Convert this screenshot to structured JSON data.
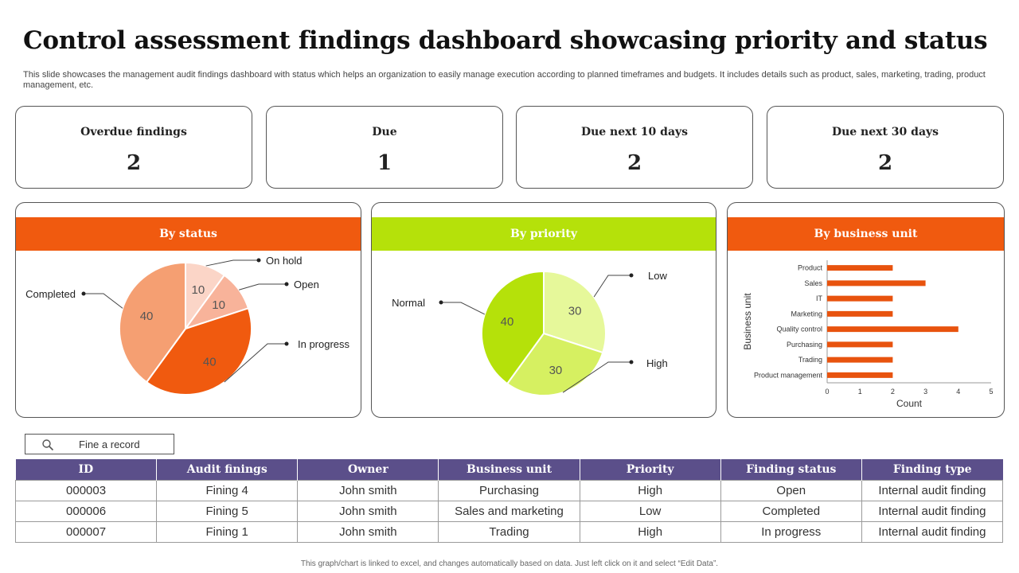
{
  "title": "Control assessment findings dashboard showcasing priority and status",
  "subtitle": "This slide showcases the management audit findings dashboard with status which helps an organization to easily manage execution according to planned timeframes and budgets. It includes details such as product, sales, marketing, trading, product management, etc.",
  "kpis": [
    {
      "label": "Overdue findings",
      "value": "2"
    },
    {
      "label": "Due",
      "value": "1"
    },
    {
      "label": "Due next 10 days",
      "value": "2"
    },
    {
      "label": "Due next 30 days",
      "value": "2"
    }
  ],
  "panels": {
    "status": {
      "title": "By status",
      "color": "#f05a0f"
    },
    "priority": {
      "title": "By priority",
      "color": "#b5e10a"
    },
    "business": {
      "title": "By business unit",
      "color": "#f05a0f"
    }
  },
  "chart_data": [
    {
      "type": "pie",
      "title": "By status",
      "labels": [
        "On hold",
        "Open",
        "In progress",
        "Completed"
      ],
      "values": [
        10,
        10,
        40,
        40
      ],
      "colors": [
        "#fbd5c7",
        "#f8b39a",
        "#f05a0f",
        "#f59f72"
      ]
    },
    {
      "type": "pie",
      "title": "By priority",
      "labels": [
        "Low",
        "High",
        "Normal"
      ],
      "values": [
        30,
        30,
        40
      ],
      "colors": [
        "#e6f89a",
        "#d6f061",
        "#b5e10a"
      ]
    },
    {
      "type": "bar",
      "orientation": "horizontal",
      "title": "By business unit",
      "categories": [
        "Product",
        "Sales",
        "IT",
        "Marketing",
        "Quality control",
        "Purchasing",
        "Trading",
        "Product management"
      ],
      "values": [
        2,
        3,
        2,
        2,
        4,
        2,
        2,
        2
      ],
      "xlabel": "Count",
      "ylabel": "Business unit",
      "xlim": [
        0,
        5
      ],
      "xticks": [
        "0",
        "1",
        "2",
        "3",
        "4",
        "5"
      ],
      "color": "#e8530e"
    }
  ],
  "search": {
    "placeholder": "Fine a record"
  },
  "table": {
    "headers": [
      "ID",
      "Audit finings",
      "Owner",
      "Business unit",
      "Priority",
      "Finding status",
      "Finding type"
    ],
    "rows": [
      [
        "000003",
        "Fining 4",
        "John smith",
        "Purchasing",
        "High",
        "Open",
        "Internal audit finding"
      ],
      [
        "000006",
        "Fining 5",
        "John smith",
        "Sales and marketing",
        "Low",
        "Completed",
        "Internal audit finding"
      ],
      [
        "000007",
        "Fining 1",
        "John smith",
        "Trading",
        "High",
        "In progress",
        "Internal audit finding"
      ]
    ]
  },
  "footnote": "This graph/chart is linked to excel, and changes automatically based on data. Just left click on it and select “Edit Data”."
}
